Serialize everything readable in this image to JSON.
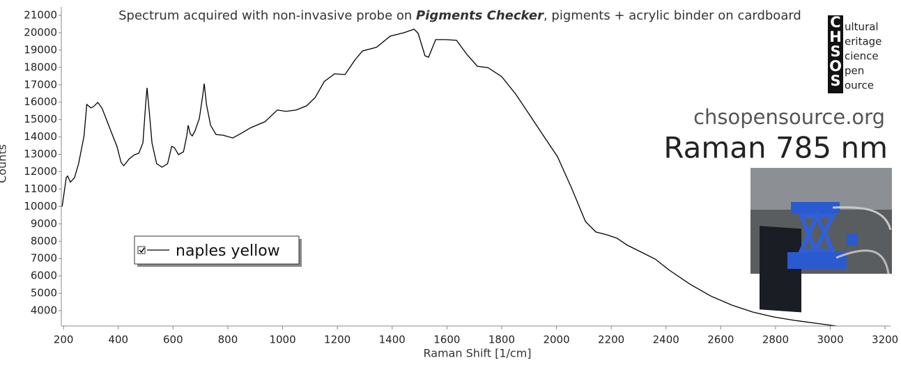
{
  "chart_data": {
    "type": "line",
    "title": [
      "Spectrum acquired with non-invasive probe on ",
      "Pigments Checker",
      ", pigments + acrylic binder on cardboard"
    ],
    "xlabel": "Raman Shift [1/cm]",
    "ylabel": "Counts",
    "site": "chsopensource.org",
    "subtitle": "Raman 785 nm",
    "logo": {
      "letters": [
        "C",
        "H",
        "S",
        "O",
        "S"
      ],
      "words": [
        "ultural",
        "eritage",
        "cience",
        "pen",
        "ource"
      ]
    },
    "xlim": [
      192,
      3220
    ],
    "ylim": [
      3120,
      21480
    ],
    "xticks": [
      200,
      400,
      600,
      800,
      1000,
      1200,
      1400,
      1600,
      1800,
      2000,
      2200,
      2400,
      2600,
      2800,
      3000,
      3200
    ],
    "yticks": [
      4000,
      5000,
      6000,
      7000,
      8000,
      9000,
      10000,
      11000,
      12000,
      13000,
      14000,
      15000,
      16000,
      17000,
      18000,
      19000,
      20000,
      21000
    ],
    "grid": false,
    "x": [
      195,
      210,
      215,
      225,
      240,
      255,
      275,
      285,
      300,
      310,
      325,
      340,
      355,
      375,
      395,
      410,
      420,
      440,
      460,
      475,
      490,
      500,
      505,
      513,
      523,
      540,
      560,
      580,
      595,
      605,
      620,
      638,
      650,
      655,
      663,
      670,
      680,
      696,
      709,
      714,
      722,
      737,
      757,
      783,
      818,
      846,
      885,
      935,
      981,
      1012,
      1050,
      1088,
      1119,
      1152,
      1190,
      1228,
      1266,
      1292,
      1343,
      1393,
      1444,
      1480,
      1495,
      1520,
      1533,
      1559,
      1597,
      1635,
      1673,
      1711,
      1750,
      1800,
      1851,
      1902,
      1953,
      2004,
      2055,
      2106,
      2144,
      2183,
      2221,
      2259,
      2310,
      2361,
      2412,
      2488,
      2564,
      2641,
      2717,
      2793,
      2870,
      2946,
      3022,
      3085
    ],
    "series": [
      {
        "name": "naples yellow",
        "color": "#000000",
        "values": [
          10000,
          11660,
          11750,
          11400,
          11650,
          12460,
          14060,
          15870,
          15670,
          15750,
          15990,
          15670,
          15070,
          14260,
          13460,
          12540,
          12340,
          12740,
          12980,
          13060,
          13660,
          15870,
          16830,
          15470,
          13660,
          12460,
          12260,
          12460,
          13460,
          13380,
          12980,
          13140,
          14060,
          14670,
          14180,
          14060,
          14340,
          15070,
          16470,
          17070,
          15870,
          14670,
          14140,
          14100,
          13940,
          14180,
          14540,
          14870,
          15550,
          15470,
          15550,
          15790,
          16270,
          17190,
          17630,
          17590,
          18470,
          18950,
          19160,
          19800,
          20000,
          20200,
          19960,
          18670,
          18590,
          19600,
          19600,
          19560,
          18750,
          18070,
          17990,
          17470,
          16470,
          15270,
          14060,
          12860,
          11060,
          9130,
          8530,
          8370,
          8170,
          7770,
          7370,
          6970,
          6330,
          5520,
          4840,
          4320,
          3920,
          3640,
          3440,
          3280,
          3120,
          3080
        ]
      }
    ]
  }
}
